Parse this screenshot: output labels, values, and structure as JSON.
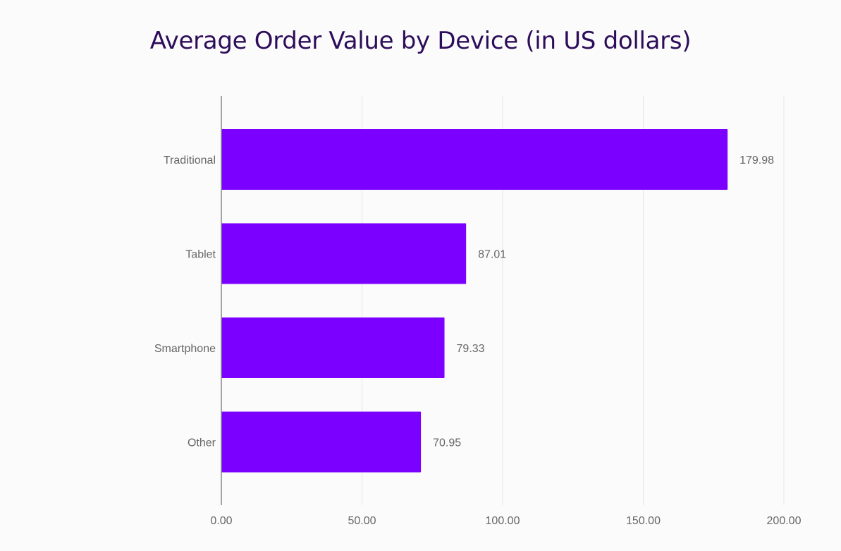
{
  "chart_data": {
    "type": "bar",
    "orientation": "horizontal",
    "title": "Average Order Value by Device (in US dollars)",
    "xlabel": "",
    "ylabel": "",
    "categories": [
      "Traditional",
      "Tablet",
      "Smartphone",
      "Other"
    ],
    "values": [
      179.98,
      87.01,
      79.33,
      70.95
    ],
    "value_labels": [
      "179.98",
      "87.01",
      "79.33",
      "70.95"
    ],
    "xlim": [
      0,
      200
    ],
    "xticks": [
      0,
      50,
      100,
      150,
      200
    ],
    "xtick_labels": [
      "0.00",
      "50.00",
      "100.00",
      "150.00",
      "200.00"
    ],
    "grid": true,
    "legend": "none",
    "colors": {
      "bar": "#7b00ff",
      "title": "#2d0d5a",
      "axis": "#888888",
      "grid": "#e6e6e6",
      "text": "#666666"
    }
  }
}
